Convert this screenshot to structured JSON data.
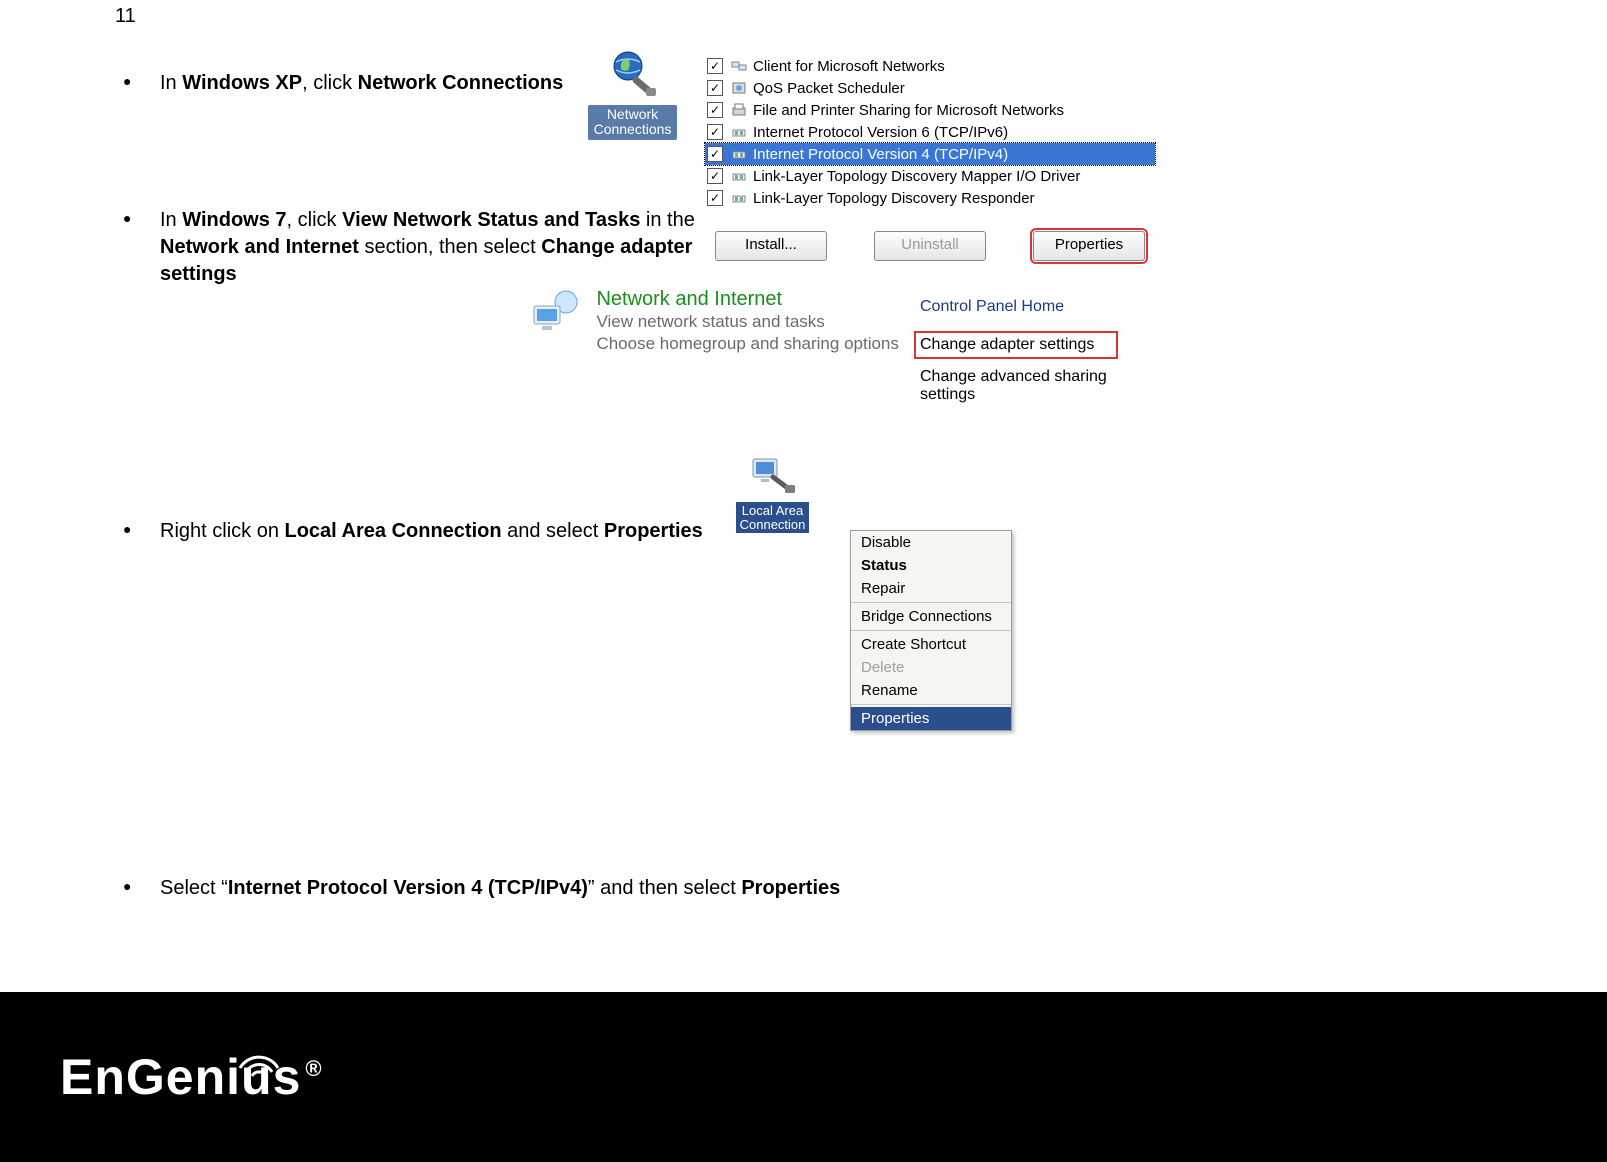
{
  "page_number": "11",
  "bullets": {
    "b1": {
      "pre": "In ",
      "bold1": "Windows XP",
      "mid": ", click ",
      "bold2": "Network Connections"
    },
    "b2": {
      "pre": "In ",
      "bold1": "Windows 7",
      "mid1": ", click ",
      "bold2": "View Network Status and Tasks",
      "mid2": " in the ",
      "bold3": "Network and Internet",
      "mid3": " section, then select ",
      "bold4": "Change adapter settings"
    },
    "b3": {
      "pre": "Right click on ",
      "bold1": "Local Area Connection",
      "mid": " and select ",
      "bold2": "Properties"
    },
    "b4": {
      "pre": "Select “",
      "bold1": "Internet Protocol Version 4 (TCP/IPv4)",
      "mid": "” and then  select ",
      "bold2": "Properties"
    }
  },
  "xp_icon": {
    "label_line1": "Network",
    "label_line2": "Connections",
    "bg": "#5a7aa8"
  },
  "items_panel": {
    "rows": [
      {
        "checked": true,
        "icon": "clients",
        "label": "Client for Microsoft Networks",
        "selected": false
      },
      {
        "checked": true,
        "icon": "qos",
        "label": "QoS Packet Scheduler",
        "selected": false
      },
      {
        "checked": true,
        "icon": "fileprint",
        "label": "File and Printer Sharing for Microsoft Networks",
        "selected": false
      },
      {
        "checked": true,
        "icon": "proto",
        "label": "Internet Protocol Version 6 (TCP/IPv6)",
        "selected": false
      },
      {
        "checked": true,
        "icon": "proto",
        "label": "Internet Protocol Version 4 (TCP/IPv4)",
        "selected": true
      },
      {
        "checked": true,
        "icon": "proto",
        "label": "Link-Layer Topology Discovery Mapper I/O Driver",
        "selected": false
      },
      {
        "checked": true,
        "icon": "proto",
        "label": "Link-Layer Topology Discovery Responder",
        "selected": false
      }
    ],
    "buttons": {
      "install": "Install...",
      "uninstall": "Uninstall",
      "properties": "Properties"
    },
    "highlight_color": "#d33",
    "sel_bg": "#3a76d6"
  },
  "win7_panel": {
    "title": "Network and Internet",
    "sub1": "View network status and tasks",
    "sub2": "Choose homegroup and sharing options",
    "title_color": "#1a8f1a",
    "sub_color": "#6a6a6a"
  },
  "sidebar_links": {
    "l1": "Control Panel Home",
    "l2": "Change adapter settings",
    "l3": "Change advanced sharing settings",
    "link_color": "#1a3a8a",
    "highlight_color": "#d33"
  },
  "lac_icon": {
    "label_line1": "Local Area",
    "label_line2": "Connection",
    "bg": "#2b4f8d"
  },
  "context_menu": {
    "items": [
      {
        "label": "Disable",
        "type": "normal"
      },
      {
        "label": "Status",
        "type": "bold"
      },
      {
        "label": "Repair",
        "type": "normal"
      },
      {
        "label": "Bridge Connections",
        "type": "normal"
      },
      {
        "label": "Create Shortcut",
        "type": "normal"
      },
      {
        "label": "Delete",
        "type": "disabled"
      },
      {
        "label": "Rename",
        "type": "normal"
      },
      {
        "label": "Properties",
        "type": "selected"
      }
    ],
    "sel_bg": "#2b4f8d"
  },
  "footer": {
    "brand": "EnGenius",
    "registered": "®"
  }
}
